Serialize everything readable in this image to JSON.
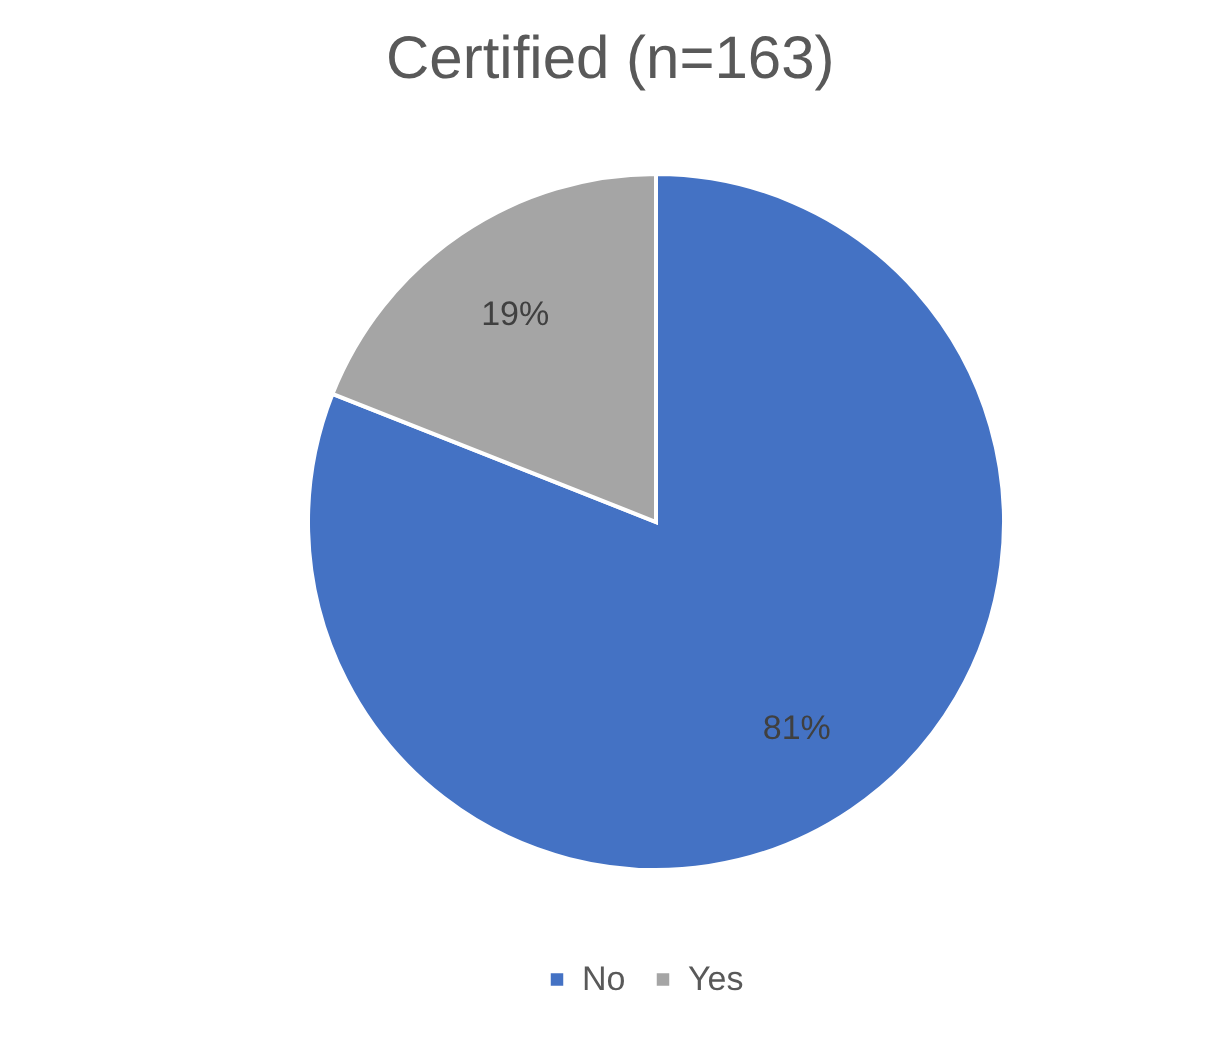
{
  "chart_data": {
    "type": "pie",
    "title": "Certified (n=163)",
    "categories": [
      "No",
      "Yes"
    ],
    "values": [
      81,
      19
    ],
    "colors": [
      "#4472c4",
      "#a5a5a5"
    ],
    "value_labels": [
      "81%",
      "19%"
    ],
    "legend": "bottom"
  }
}
